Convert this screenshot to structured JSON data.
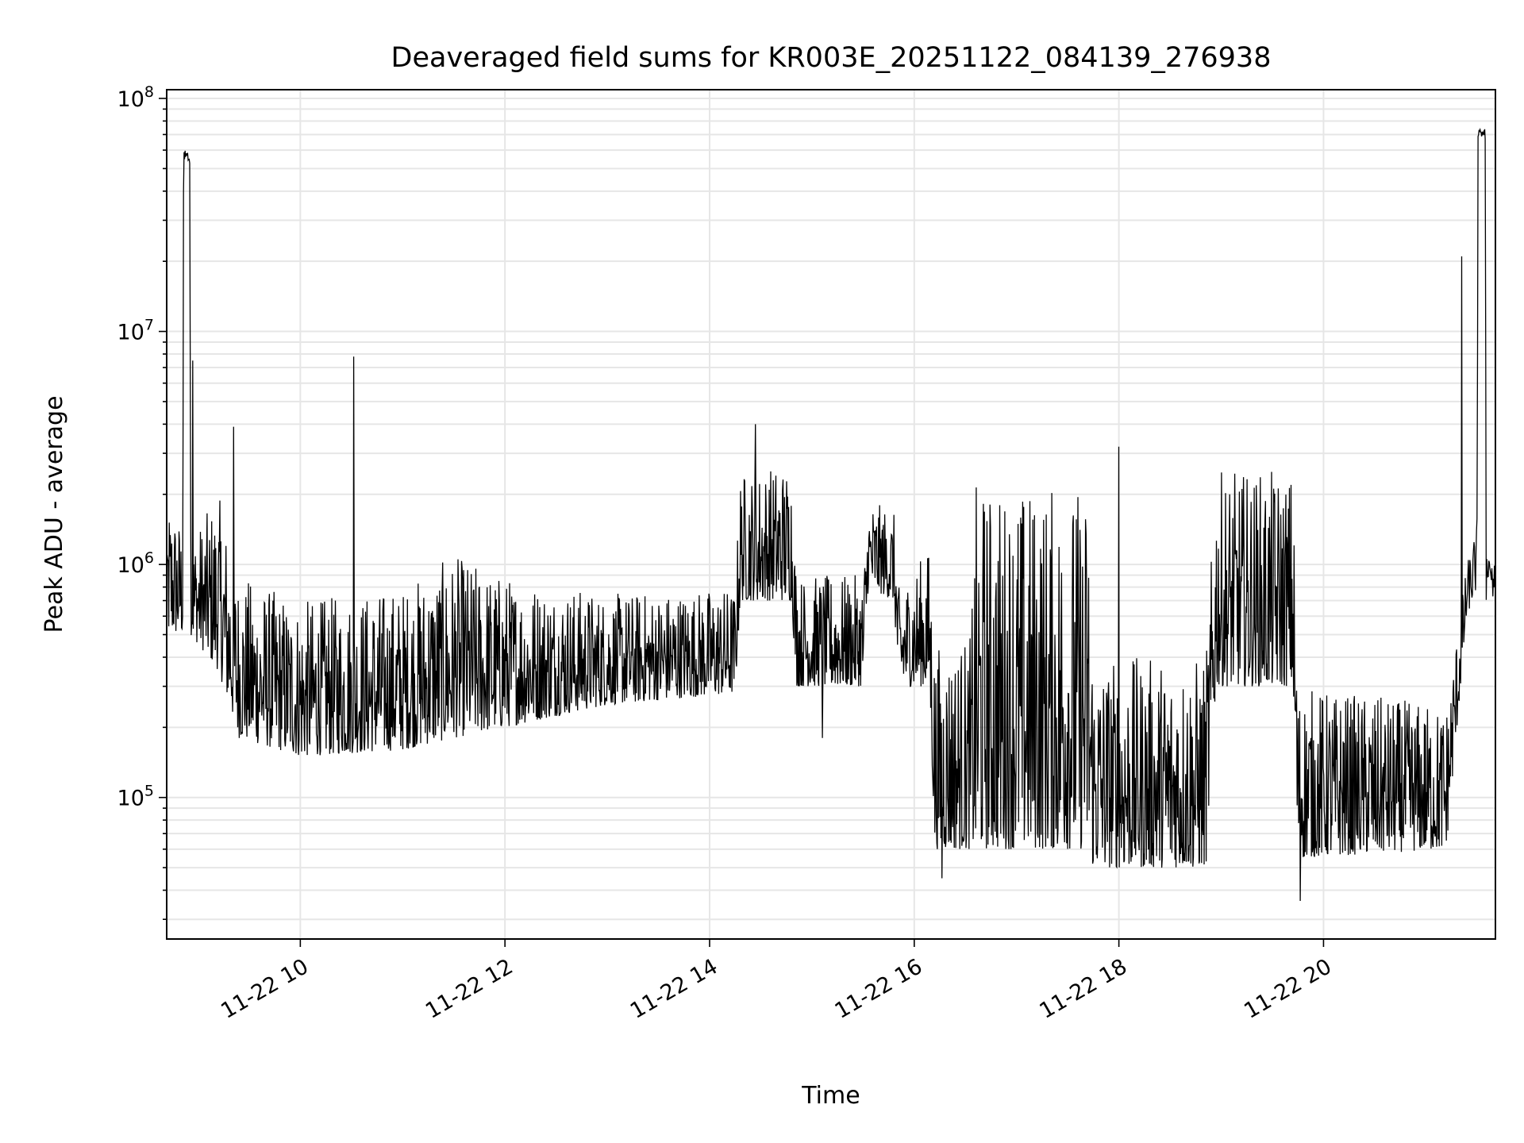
{
  "chart_data": {
    "type": "line",
    "title": "Deaveraged field sums for KR003E_20251122_084139_276938",
    "xlabel": "Time",
    "ylabel": "Peak ADU - average",
    "yscale": "log",
    "ylim": [
      24700,
      109000000
    ],
    "xlim_hours": [
      8.694,
      21.68
    ],
    "grid": true,
    "line_color": "#000000",
    "x_ticks": [
      {
        "hour": 10,
        "label": "11-22 10"
      },
      {
        "hour": 12,
        "label": "11-22 12"
      },
      {
        "hour": 14,
        "label": "11-22 14"
      },
      {
        "hour": 16,
        "label": "11-22 16"
      },
      {
        "hour": 18,
        "label": "11-22 18"
      },
      {
        "hour": 20,
        "label": "11-22 20"
      }
    ],
    "y_ticks": [
      {
        "exp": 5,
        "base": "10",
        "sup": "5"
      },
      {
        "exp": 6,
        "base": "10",
        "sup": "6"
      },
      {
        "exp": 7,
        "base": "10",
        "sup": "7"
      },
      {
        "exp": 8,
        "base": "10",
        "sup": "8"
      }
    ],
    "envelope_note": "approximate min/max envelope of the noisy series, hours vs ADU",
    "envelope": [
      {
        "t": 8.7,
        "lo": 500000,
        "hi": 2000000
      },
      {
        "t": 8.85,
        "lo": 500000,
        "hi": 1500000
      },
      {
        "t": 8.86,
        "lo": 50000000,
        "hi": 62000000
      },
      {
        "t": 8.92,
        "lo": 50000000,
        "hi": 62000000
      },
      {
        "t": 8.93,
        "lo": 500000,
        "hi": 1300000
      },
      {
        "t": 9.2,
        "lo": 350000,
        "hi": 2000000
      },
      {
        "t": 9.4,
        "lo": 180000,
        "hi": 900000
      },
      {
        "t": 10.0,
        "lo": 150000,
        "hi": 700000
      },
      {
        "t": 11.0,
        "lo": 160000,
        "hi": 800000
      },
      {
        "t": 11.5,
        "lo": 180000,
        "hi": 1100000
      },
      {
        "t": 12.0,
        "lo": 200000,
        "hi": 900000
      },
      {
        "t": 13.0,
        "lo": 250000,
        "hi": 750000
      },
      {
        "t": 14.25,
        "lo": 280000,
        "hi": 800000
      },
      {
        "t": 14.3,
        "lo": 700000,
        "hi": 2500000
      },
      {
        "t": 14.8,
        "lo": 700000,
        "hi": 2800000
      },
      {
        "t": 14.85,
        "lo": 300000,
        "hi": 900000
      },
      {
        "t": 15.5,
        "lo": 300000,
        "hi": 900000
      },
      {
        "t": 15.55,
        "lo": 800000,
        "hi": 1900000
      },
      {
        "t": 15.8,
        "lo": 700000,
        "hi": 1700000
      },
      {
        "t": 15.85,
        "lo": 300000,
        "hi": 800000
      },
      {
        "t": 16.15,
        "lo": 300000,
        "hi": 1200000
      },
      {
        "t": 16.2,
        "lo": 60000,
        "hi": 450000
      },
      {
        "t": 16.55,
        "lo": 60000,
        "hi": 500000
      },
      {
        "t": 16.6,
        "lo": 60000,
        "hi": 2200000
      },
      {
        "t": 17.7,
        "lo": 60000,
        "hi": 2200000
      },
      {
        "t": 17.75,
        "lo": 50000,
        "hi": 400000
      },
      {
        "t": 18.85,
        "lo": 50000,
        "hi": 400000
      },
      {
        "t": 18.95,
        "lo": 300000,
        "hi": 2500000
      },
      {
        "t": 19.7,
        "lo": 300000,
        "hi": 2500000
      },
      {
        "t": 19.75,
        "lo": 55000,
        "hi": 300000
      },
      {
        "t": 21.2,
        "lo": 60000,
        "hi": 250000
      },
      {
        "t": 21.4,
        "lo": 600000,
        "hi": 1000000
      },
      {
        "t": 21.5,
        "lo": 800000,
        "hi": 1500000
      },
      {
        "t": 21.51,
        "lo": 68000000,
        "hi": 74000000
      },
      {
        "t": 21.58,
        "lo": 68000000,
        "hi": 74000000
      },
      {
        "t": 21.59,
        "lo": 700000,
        "hi": 1100000
      },
      {
        "t": 21.68,
        "lo": 700000,
        "hi": 1100000
      }
    ],
    "spikes": [
      {
        "t": 8.95,
        "value": 7500000
      },
      {
        "t": 9.35,
        "value": 3900000
      },
      {
        "t": 10.52,
        "value": 7800000
      },
      {
        "t": 14.45,
        "value": 4000000
      },
      {
        "t": 15.1,
        "value": 180000
      },
      {
        "t": 16.27,
        "value": 45000
      },
      {
        "t": 18.0,
        "value": 3200000
      },
      {
        "t": 19.77,
        "value": 36000
      },
      {
        "t": 21.35,
        "value": 21000000
      }
    ]
  }
}
